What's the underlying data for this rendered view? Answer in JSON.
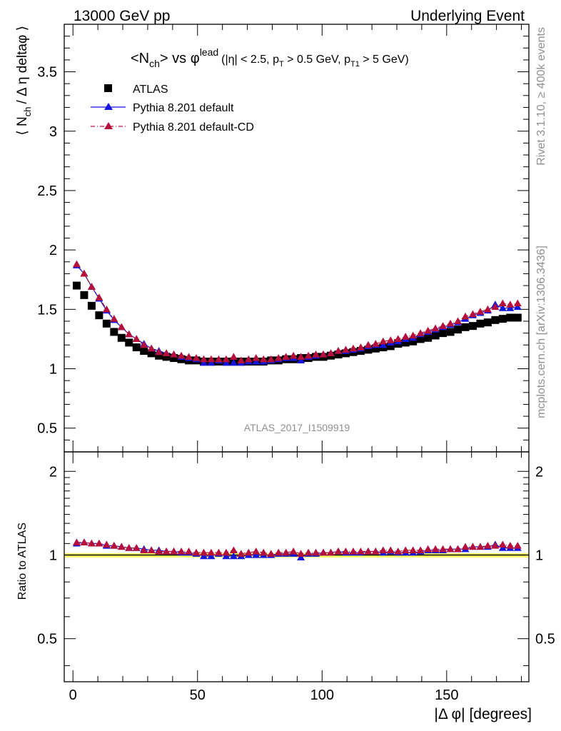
{
  "header": {
    "left": "13000 GeV pp",
    "right": "Underlying Event"
  },
  "plot_title": {
    "main": "<N",
    "main_sub": "ch",
    "main2": "> vs φ",
    "main_sup": "lead",
    "cuts": "(|η| < 2.5, p",
    "cuts_sub1": "T",
    "cuts_mid": " > 0.5 GeV, p",
    "cuts_sub2": "T1",
    "cuts_end": " > 5 GeV)"
  },
  "side_text": {
    "rivet": "Rivet 3.1.10, ≥ 400k events",
    "mcplots": "mcplots.cern.ch [arXiv:1306.3436]"
  },
  "watermark": "ATLAS_2017_I1509919",
  "chart_data": [
    {
      "type": "scatter",
      "title": "<Nch> vs φlead (|η| < 2.5, pT > 0.5 GeV, pT1 > 5 GeV)",
      "ylabel_parts": {
        "pre": "⟨ N",
        "sub": "ch",
        "post": "/ Δ η deltaφ ⟩"
      },
      "xlim": [
        -3.5,
        183
      ],
      "ylim": [
        0.3,
        3.9
      ],
      "yticks": [
        "0.5",
        "1",
        "1.5",
        "2",
        "2.5",
        "3",
        "3.5"
      ],
      "legend_placement": "top-left",
      "legend": [
        {
          "name": "ATLAS",
          "marker": "square",
          "color": "#000000"
        },
        {
          "name": "Pythia 8.201 default",
          "marker": "triangle",
          "color": "#1515dd",
          "line": "solid"
        },
        {
          "name": "Pythia 8.201 default-CD",
          "marker": "triangle",
          "color": "#b5103c",
          "line": "dashdot"
        }
      ],
      "x": [
        1.5,
        4.5,
        7.5,
        10.5,
        13.5,
        16.5,
        19.5,
        22.5,
        25.5,
        28.5,
        31.5,
        34.5,
        37.5,
        40.5,
        43.5,
        46.5,
        49.5,
        52.5,
        55.5,
        58.5,
        61.5,
        64.5,
        67.5,
        70.5,
        73.5,
        76.5,
        79.5,
        82.5,
        85.5,
        88.5,
        91.5,
        94.5,
        97.5,
        100.5,
        103.5,
        106.5,
        109.5,
        112.5,
        115.5,
        118.5,
        121.5,
        124.5,
        127.5,
        130.5,
        133.5,
        136.5,
        139.5,
        142.5,
        145.5,
        148.5,
        151.5,
        154.5,
        157.5,
        160.5,
        163.5,
        166.5,
        169.5,
        172.5,
        175.5,
        178.5
      ],
      "series": [
        {
          "name": "ATLAS",
          "values": [
            1.7,
            1.62,
            1.53,
            1.45,
            1.38,
            1.31,
            1.26,
            1.22,
            1.18,
            1.15,
            1.13,
            1.11,
            1.1,
            1.09,
            1.08,
            1.07,
            1.07,
            1.06,
            1.06,
            1.06,
            1.06,
            1.06,
            1.06,
            1.06,
            1.06,
            1.06,
            1.07,
            1.07,
            1.08,
            1.08,
            1.09,
            1.09,
            1.1,
            1.1,
            1.11,
            1.12,
            1.13,
            1.14,
            1.15,
            1.16,
            1.17,
            1.18,
            1.19,
            1.21,
            1.22,
            1.23,
            1.25,
            1.26,
            1.28,
            1.3,
            1.31,
            1.33,
            1.35,
            1.36,
            1.38,
            1.39,
            1.41,
            1.42,
            1.43,
            1.43
          ]
        },
        {
          "name": "Pythia 8.201 default",
          "values": [
            1.87,
            1.8,
            1.69,
            1.59,
            1.49,
            1.41,
            1.35,
            1.29,
            1.25,
            1.21,
            1.17,
            1.15,
            1.13,
            1.12,
            1.1,
            1.09,
            1.08,
            1.05,
            1.05,
            1.07,
            1.05,
            1.05,
            1.05,
            1.06,
            1.06,
            1.06,
            1.07,
            1.08,
            1.09,
            1.09,
            1.07,
            1.1,
            1.11,
            1.12,
            1.13,
            1.15,
            1.15,
            1.16,
            1.17,
            1.19,
            1.2,
            1.2,
            1.22,
            1.23,
            1.25,
            1.26,
            1.29,
            1.31,
            1.33,
            1.35,
            1.37,
            1.39,
            1.42,
            1.45,
            1.47,
            1.49,
            1.54,
            1.51,
            1.51,
            1.52
          ]
        },
        {
          "name": "Pythia 8.201 default-CD",
          "values": [
            1.88,
            1.8,
            1.69,
            1.6,
            1.5,
            1.42,
            1.35,
            1.29,
            1.25,
            1.2,
            1.17,
            1.14,
            1.13,
            1.12,
            1.11,
            1.1,
            1.09,
            1.08,
            1.08,
            1.08,
            1.08,
            1.1,
            1.07,
            1.08,
            1.09,
            1.08,
            1.08,
            1.09,
            1.1,
            1.11,
            1.1,
            1.11,
            1.12,
            1.12,
            1.13,
            1.15,
            1.16,
            1.17,
            1.18,
            1.2,
            1.21,
            1.23,
            1.24,
            1.25,
            1.27,
            1.28,
            1.3,
            1.32,
            1.34,
            1.36,
            1.38,
            1.4,
            1.44,
            1.46,
            1.48,
            1.5,
            1.52,
            1.55,
            1.54,
            1.55
          ]
        }
      ]
    },
    {
      "type": "scatter",
      "ylabel": "Ratio to ATLAS",
      "xlabel_parts": {
        "pre": "|Δ φ| [degrees]"
      },
      "xlim": [
        -3.5,
        183
      ],
      "ylim": [
        0.35,
        2.35
      ],
      "ylog": true,
      "yticks": [
        "0.5",
        "1",
        "2"
      ],
      "xticks": [
        "0",
        "50",
        "100",
        "150"
      ],
      "band_color": "#ffff66",
      "band_halfwidth": 0.015,
      "series": [
        {
          "name": "Pythia 8.201 default",
          "values": [
            1.1,
            1.11,
            1.1,
            1.1,
            1.08,
            1.08,
            1.07,
            1.06,
            1.06,
            1.05,
            1.04,
            1.04,
            1.03,
            1.03,
            1.02,
            1.02,
            1.01,
            0.99,
            0.99,
            1.01,
            0.99,
            0.99,
            0.99,
            1.0,
            1.0,
            1.0,
            1.0,
            1.01,
            1.01,
            1.01,
            0.98,
            1.01,
            1.01,
            1.02,
            1.02,
            1.03,
            1.02,
            1.02,
            1.02,
            1.03,
            1.03,
            1.02,
            1.03,
            1.02,
            1.02,
            1.02,
            1.03,
            1.04,
            1.04,
            1.04,
            1.05,
            1.05,
            1.05,
            1.07,
            1.07,
            1.07,
            1.09,
            1.06,
            1.06,
            1.06
          ]
        },
        {
          "name": "Pythia 8.201 default-CD",
          "values": [
            1.11,
            1.11,
            1.1,
            1.1,
            1.09,
            1.08,
            1.07,
            1.06,
            1.06,
            1.04,
            1.04,
            1.03,
            1.03,
            1.03,
            1.03,
            1.03,
            1.02,
            1.02,
            1.02,
            1.02,
            1.02,
            1.04,
            1.01,
            1.02,
            1.03,
            1.02,
            1.01,
            1.02,
            1.02,
            1.03,
            1.01,
            1.02,
            1.02,
            1.02,
            1.02,
            1.03,
            1.03,
            1.03,
            1.03,
            1.03,
            1.03,
            1.04,
            1.04,
            1.03,
            1.04,
            1.04,
            1.04,
            1.05,
            1.05,
            1.05,
            1.05,
            1.05,
            1.07,
            1.07,
            1.07,
            1.08,
            1.08,
            1.09,
            1.08,
            1.08
          ]
        }
      ]
    }
  ]
}
